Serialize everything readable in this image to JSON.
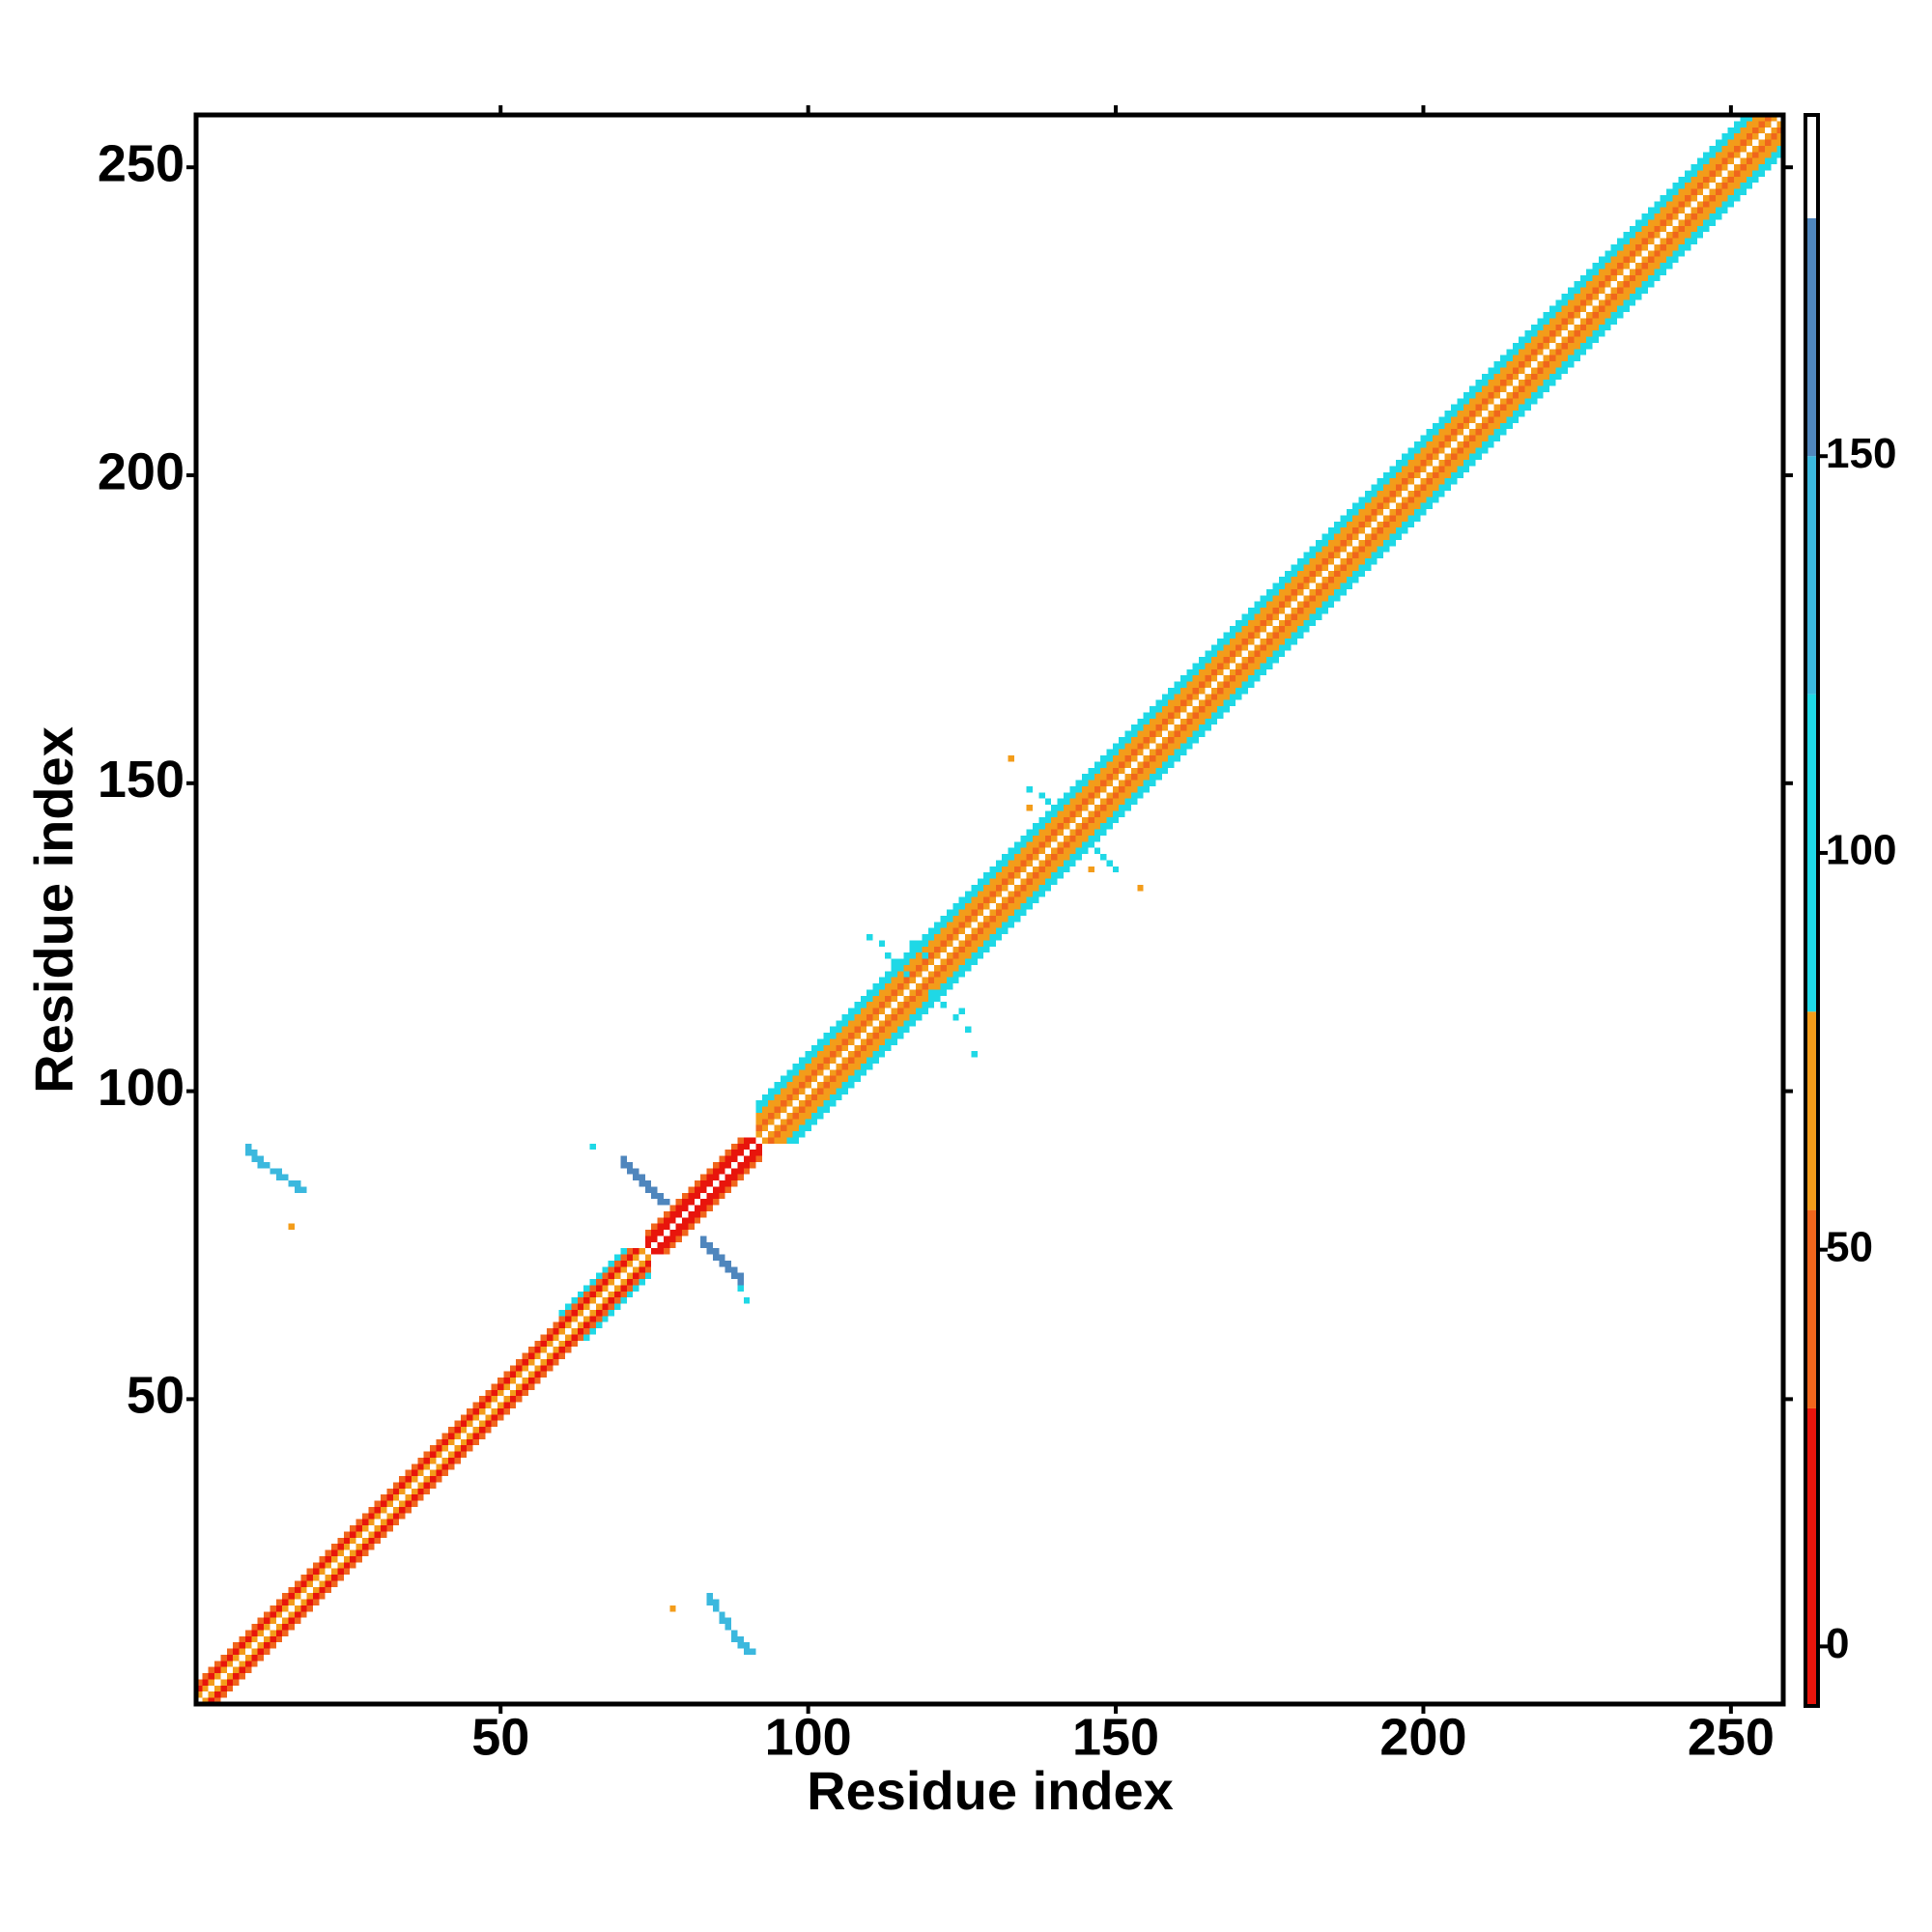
{
  "chart_data": {
    "type": "heatmap",
    "xlabel": "Residue index",
    "ylabel": "Residue index",
    "xlim": [
      0.5,
      258.5
    ],
    "ylim": [
      0.5,
      258.5
    ],
    "xticks": [
      50,
      100,
      150,
      200,
      250
    ],
    "yticks": [
      50,
      100,
      150,
      200,
      250
    ],
    "colorbar": {
      "lim": [
        -7.5,
        193
      ],
      "ticks": [
        0,
        50,
        100,
        150
      ],
      "scale": [
        {
          "from": -7.5,
          "to": 30,
          "color": "#e8150c"
        },
        {
          "from": 30,
          "to": 55,
          "color": "#f0661c"
        },
        {
          "from": 55,
          "to": 80,
          "color": "#f39c1a"
        },
        {
          "from": 80,
          "to": 120,
          "color": "#1fd8e6"
        },
        {
          "from": 120,
          "to": 150,
          "color": "#3bb8de"
        },
        {
          "from": 150,
          "to": 180,
          "color": "#4f86bd"
        },
        {
          "from": 180,
          "to": 193,
          "color": "#ffffff"
        }
      ]
    },
    "bands": [
      {
        "from": 1,
        "to": 74,
        "offset": 1,
        "value": 60
      },
      {
        "from": 1,
        "to": 74,
        "offset": 2,
        "value": 25
      },
      {
        "from": 1,
        "to": 74,
        "offset": 3,
        "value": 45
      },
      {
        "from": 60,
        "to": 74,
        "offset": 4,
        "value": 95
      },
      {
        "from": 74,
        "to": 92,
        "offset": 1,
        "value": 10
      },
      {
        "from": 74,
        "to": 92,
        "offset": 2,
        "value": 10
      },
      {
        "from": 74,
        "to": 92,
        "offset": 3,
        "value": 40
      },
      {
        "from": 92,
        "to": 258,
        "offset": 1,
        "value": 60
      },
      {
        "from": 92,
        "to": 258,
        "offset": 2,
        "value": 40
      },
      {
        "from": 92,
        "to": 258,
        "offset": 3,
        "value": 65
      },
      {
        "from": 92,
        "to": 258,
        "offset": 4,
        "value": 70
      },
      {
        "from": 92,
        "to": 258,
        "offset": 5,
        "value": 95
      },
      {
        "from": 92,
        "to": 258,
        "offset": 6,
        "value": 95
      }
    ],
    "cells": [
      [
        70,
        89,
        160
      ],
      [
        70,
        88,
        160
      ],
      [
        71,
        88,
        160
      ],
      [
        71,
        87,
        160
      ],
      [
        72,
        87,
        160
      ],
      [
        72,
        86,
        160
      ],
      [
        73,
        86,
        160
      ],
      [
        73,
        85,
        160
      ],
      [
        74,
        85,
        160
      ],
      [
        74,
        84,
        160
      ],
      [
        75,
        84,
        160
      ],
      [
        75,
        83,
        160
      ],
      [
        76,
        83,
        160
      ],
      [
        76,
        82,
        160
      ],
      [
        77,
        82,
        160
      ],
      [
        83,
        76,
        160
      ],
      [
        83,
        75,
        160
      ],
      [
        84,
        75,
        160
      ],
      [
        84,
        74,
        160
      ],
      [
        85,
        74,
        160
      ],
      [
        85,
        73,
        160
      ],
      [
        86,
        73,
        160
      ],
      [
        86,
        72,
        160
      ],
      [
        87,
        72,
        160
      ],
      [
        87,
        71,
        160
      ],
      [
        88,
        71,
        160
      ],
      [
        88,
        70,
        160
      ],
      [
        89,
        70,
        160
      ],
      [
        89,
        69,
        160
      ],
      [
        65,
        91,
        110
      ],
      [
        90,
        66,
        110
      ],
      [
        89,
        68,
        110
      ],
      [
        110,
        125,
        100
      ],
      [
        112,
        124,
        100
      ],
      [
        113,
        122,
        100
      ],
      [
        114,
        121,
        100
      ],
      [
        115,
        120,
        100
      ],
      [
        116,
        119,
        100
      ],
      [
        120,
        116,
        100
      ],
      [
        121,
        115,
        100
      ],
      [
        122,
        114,
        100
      ],
      [
        124,
        112,
        100
      ],
      [
        126,
        110,
        100
      ],
      [
        125,
        113,
        100
      ],
      [
        119,
        122,
        100
      ],
      [
        117,
        124,
        100
      ],
      [
        127,
        106,
        100
      ],
      [
        136,
        149,
        100
      ],
      [
        138,
        148,
        100
      ],
      [
        139,
        147,
        100
      ],
      [
        140,
        146,
        100
      ],
      [
        146,
        140,
        100
      ],
      [
        147,
        139,
        100
      ],
      [
        148,
        138,
        100
      ],
      [
        149,
        137,
        100
      ],
      [
        150,
        136,
        100
      ],
      [
        133,
        154,
        60
      ],
      [
        154,
        133,
        60
      ],
      [
        136,
        146,
        60
      ],
      [
        146,
        136,
        60
      ],
      [
        9,
        90,
        120
      ],
      [
        10,
        90,
        120
      ],
      [
        10,
        89,
        120
      ],
      [
        11,
        89,
        120
      ],
      [
        11,
        88,
        120
      ],
      [
        12,
        88,
        120
      ],
      [
        13,
        87,
        120
      ],
      [
        14,
        87,
        120
      ],
      [
        14,
        86,
        120
      ],
      [
        15,
        86,
        120
      ],
      [
        16,
        85,
        120
      ],
      [
        17,
        85,
        120
      ],
      [
        17,
        84,
        120
      ],
      [
        18,
        84,
        120
      ],
      [
        9,
        91,
        120
      ],
      [
        90,
        9,
        120
      ],
      [
        90,
        10,
        120
      ],
      [
        89,
        10,
        120
      ],
      [
        89,
        11,
        120
      ],
      [
        88,
        11,
        120
      ],
      [
        88,
        12,
        120
      ],
      [
        87,
        13,
        120
      ],
      [
        87,
        14,
        120
      ],
      [
        86,
        14,
        120
      ],
      [
        86,
        15,
        120
      ],
      [
        85,
        16,
        120
      ],
      [
        85,
        17,
        120
      ],
      [
        84,
        17,
        120
      ],
      [
        84,
        18,
        120
      ],
      [
        91,
        9,
        120
      ],
      [
        16,
        78,
        60
      ],
      [
        78,
        16,
        60
      ]
    ]
  }
}
